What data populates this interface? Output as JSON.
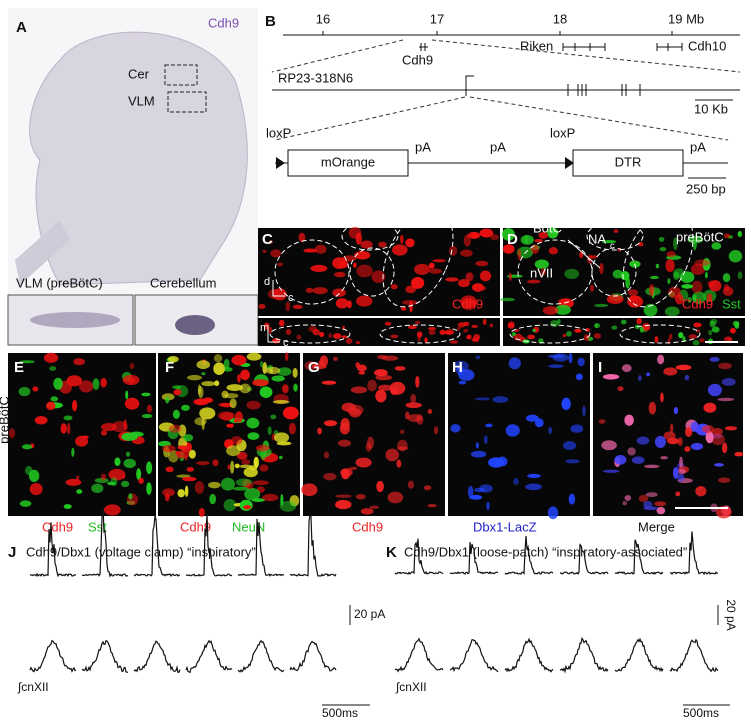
{
  "panels": {
    "A": {
      "label": "A",
      "gene": "Cdh9",
      "regions": [
        "Cer",
        "VLM"
      ],
      "insets": [
        "VLM (preBötC)",
        "Cerebellum"
      ]
    },
    "B": {
      "label": "B",
      "axis_ticks": [
        "16",
        "17",
        "18",
        "19 Mb"
      ],
      "genes": [
        "Cdh9",
        "Riken",
        "Cdh10"
      ],
      "bac": "RP23-318N6",
      "scale_bac": "10 Kb",
      "construct": [
        "loxP",
        "mOrange",
        "pA",
        "pA",
        "loxP",
        "DTR",
        "pA"
      ],
      "scale_construct": "250 bp"
    },
    "C": {
      "label": "C",
      "axes": [
        "d",
        "c",
        "m",
        "c"
      ],
      "stain": "Cdh9"
    },
    "D": {
      "label": "D",
      "regions": [
        "BötC",
        "NA",
        "c",
        "preBötC",
        "nVII"
      ],
      "stains": [
        "Cdh9",
        "Sst"
      ]
    },
    "row_label": "preBötC",
    "E": {
      "label": "E",
      "stains": [
        "Cdh9",
        "Sst"
      ]
    },
    "F": {
      "label": "F",
      "stains": [
        "Cdh9",
        "NeuN"
      ]
    },
    "G": {
      "label": "G",
      "stain": "Cdh9"
    },
    "H": {
      "label": "H",
      "stain": "Dbx1-LacZ"
    },
    "I": {
      "label": "I",
      "stain": "Merge"
    },
    "J": {
      "label": "J",
      "title": "Cdh9/Dbx1 (voltage clamp) “inspiratory”",
      "scale_y": "20 pA",
      "trace": "∫cnXII",
      "scale_x": "500ms"
    },
    "K": {
      "label": "K",
      "title": "Cdh9/Dbx1 (loose-patch) “inspiratory-associated”",
      "scale_y": "20 pA",
      "trace": "∫cnXII",
      "scale_x": "500ms"
    }
  }
}
